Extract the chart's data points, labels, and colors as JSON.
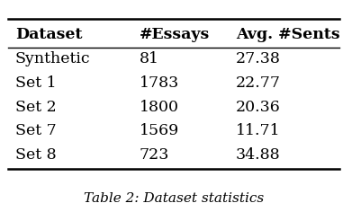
{
  "columns": [
    "Dataset",
    "#Essays",
    "Avg. #Sents"
  ],
  "rows": [
    [
      "Synthetic",
      "81",
      "27.38"
    ],
    [
      "Set 1",
      "1783",
      "22.77"
    ],
    [
      "Set 2",
      "1800",
      "20.36"
    ],
    [
      "Set 7",
      "1569",
      "11.71"
    ],
    [
      "Set 8",
      "723",
      "34.88"
    ]
  ],
  "caption": "Table 2: Dataset statistics",
  "background_color": "#ffffff",
  "header_fontsize": 12.5,
  "body_fontsize": 12.5,
  "caption_fontsize": 11
}
